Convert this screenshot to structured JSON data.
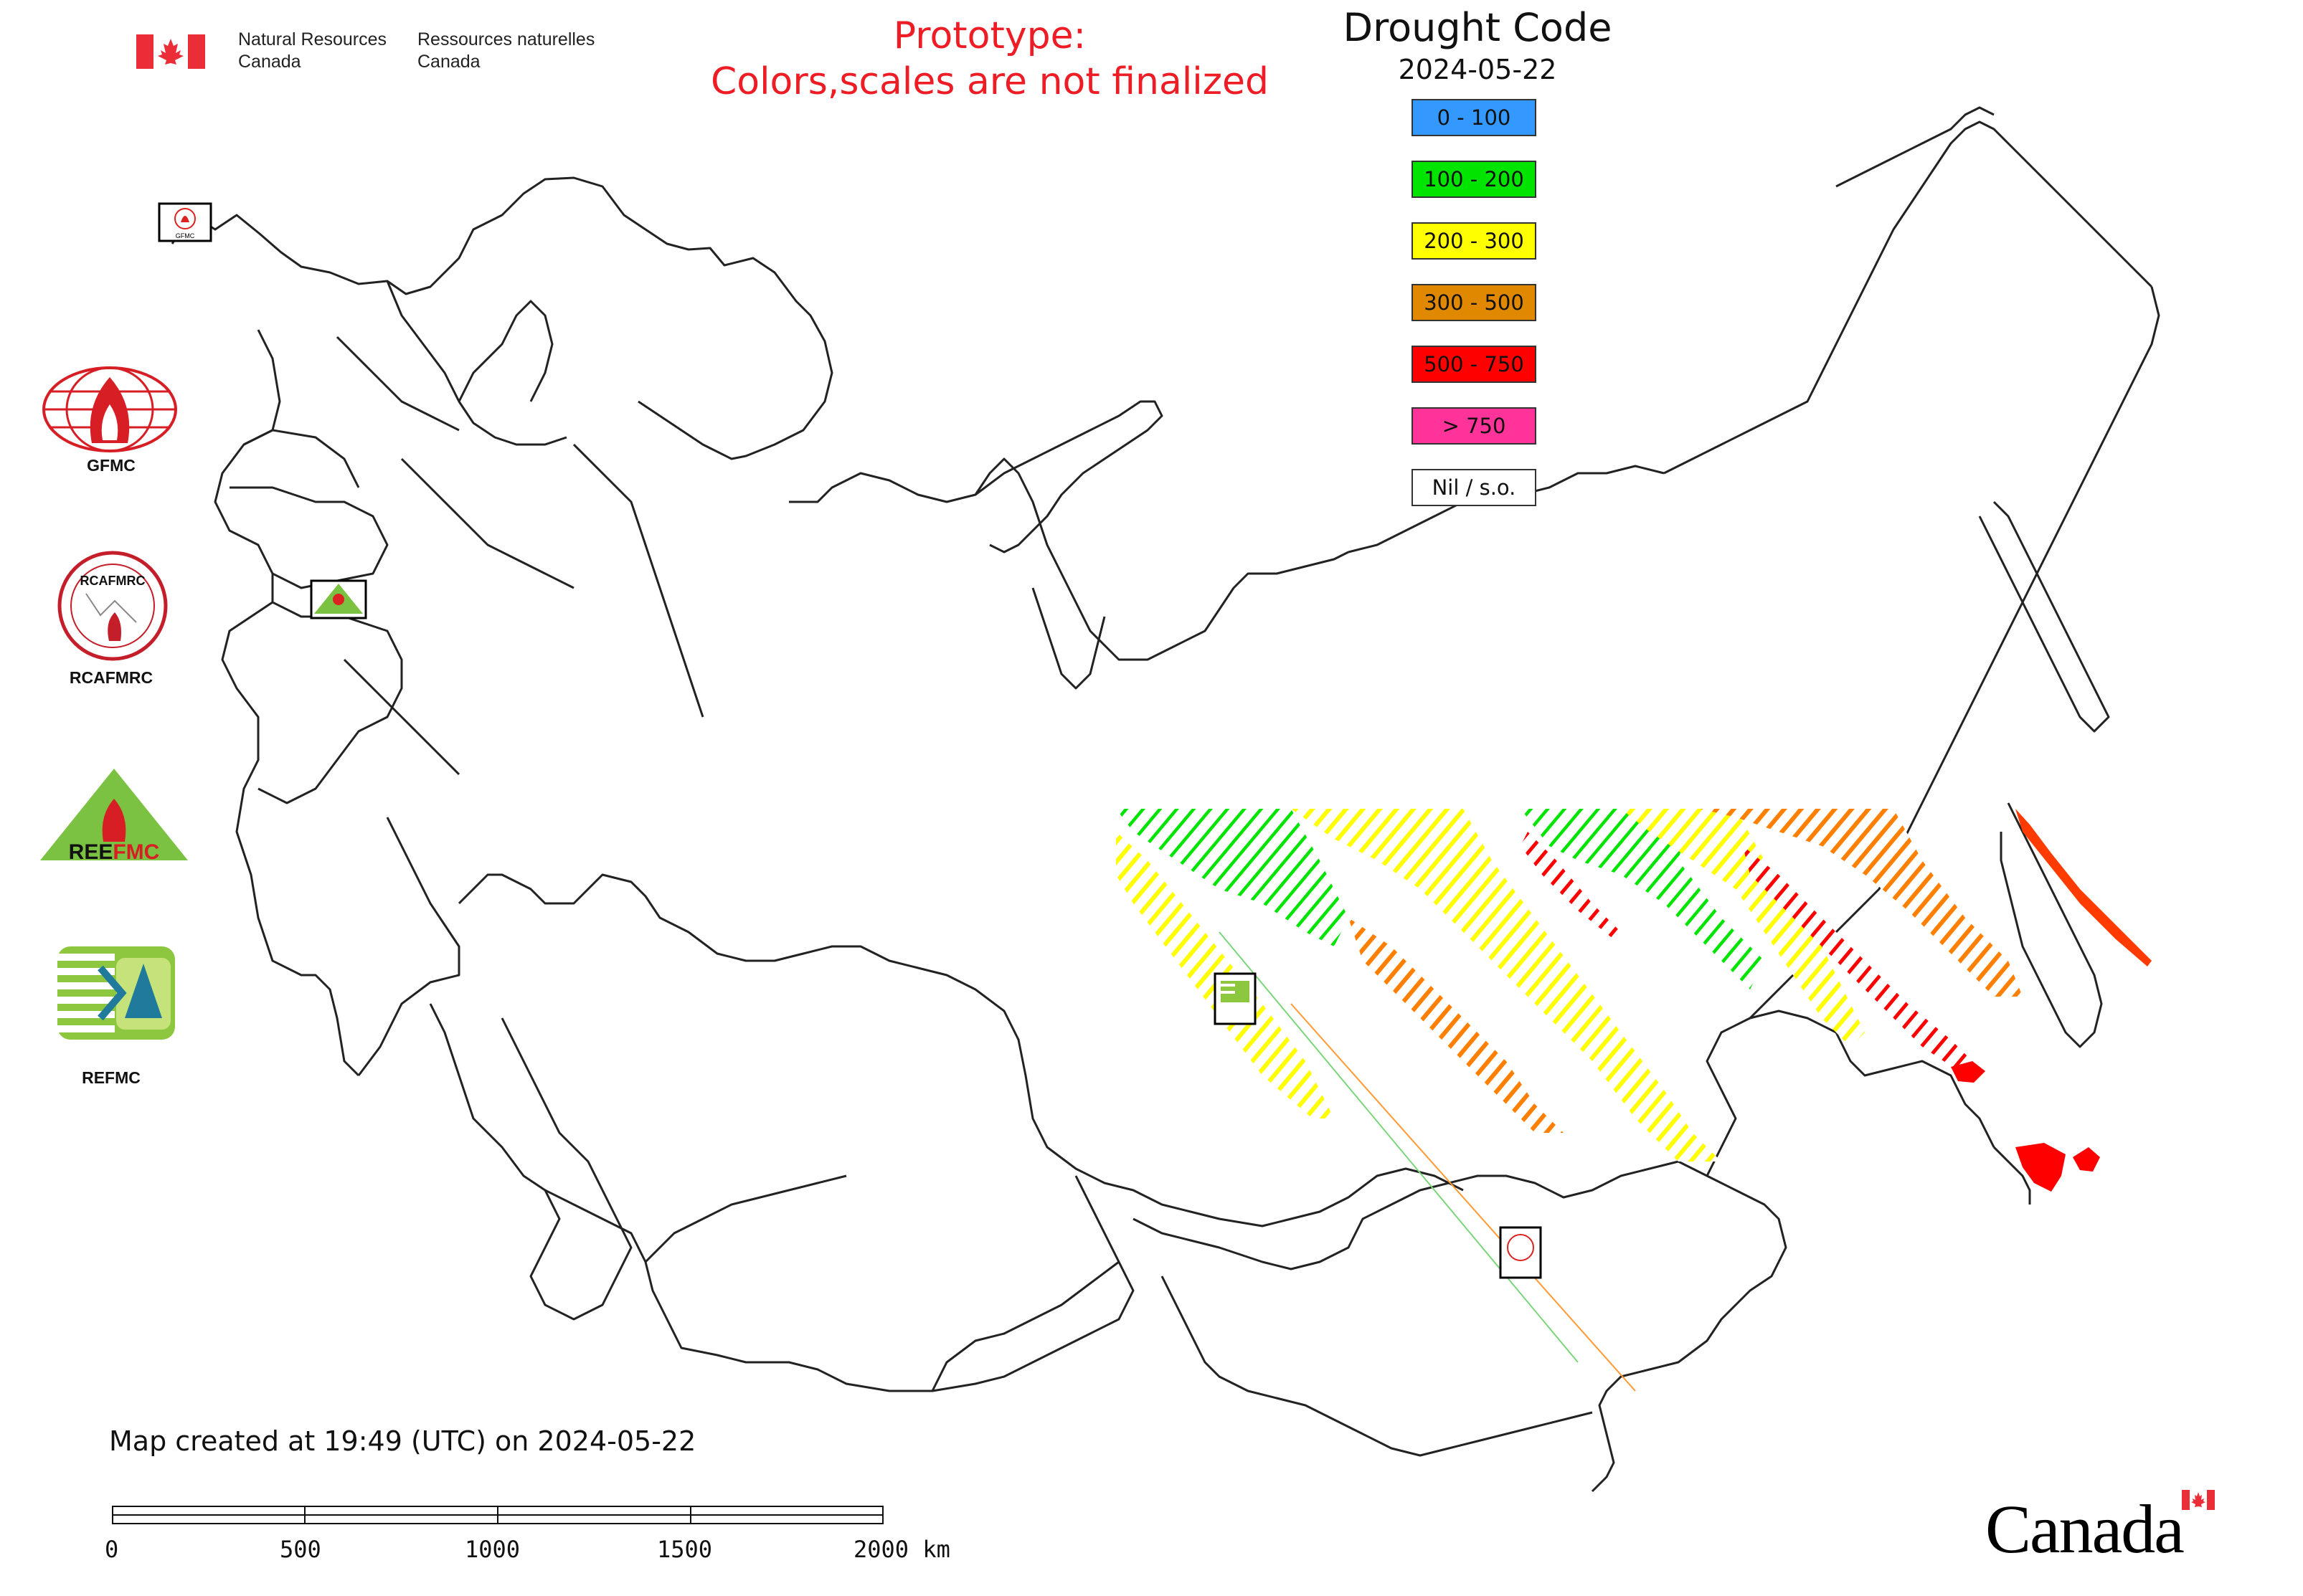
{
  "header": {
    "org_name_en": "Natural Resources\nCanada",
    "org_name_fr": "Ressources naturelles\nCanada",
    "org_en_line1": "Natural Resources",
    "org_en_line2": "Canada",
    "org_fr_line1": "Ressources naturelles",
    "org_fr_line2": "Canada"
  },
  "notice": {
    "line1": "Prototype:",
    "line2": "Colors,scales are not finalized"
  },
  "legend": {
    "title": "Drought Code",
    "date": "2024-05-22",
    "classes": [
      {
        "label": "0 - 100",
        "color": "#3399ff"
      },
      {
        "label": "100 - 200",
        "color": "#00e400"
      },
      {
        "label": "200 - 300",
        "color": "#ffff00"
      },
      {
        "label": "300 - 500",
        "color": "#e08800"
      },
      {
        "label": "500 - 750",
        "color": "#ff0000"
      },
      {
        "label": "> 750",
        "color": "#ff3399"
      },
      {
        "label": "Nil / s.o.",
        "color": "#ffffff"
      }
    ]
  },
  "logos": {
    "gfmc": "GFMC",
    "rcafmrc": "RCAFMRC",
    "reefmc": "REEFMC",
    "refmc": "REFMC"
  },
  "map": {
    "markers": [
      "GFMC",
      "REEFMC",
      "REFMC",
      "RCAFMRC"
    ]
  },
  "footer": {
    "created": "Map created at 19:49 (UTC) on 2024-05-22",
    "scale_labels": [
      "0",
      "500",
      "1000",
      "1500",
      "2000 km"
    ],
    "wordmark": "Canada"
  },
  "colors": {
    "accent_red": "#ee1c25",
    "boundary": "#222222"
  }
}
